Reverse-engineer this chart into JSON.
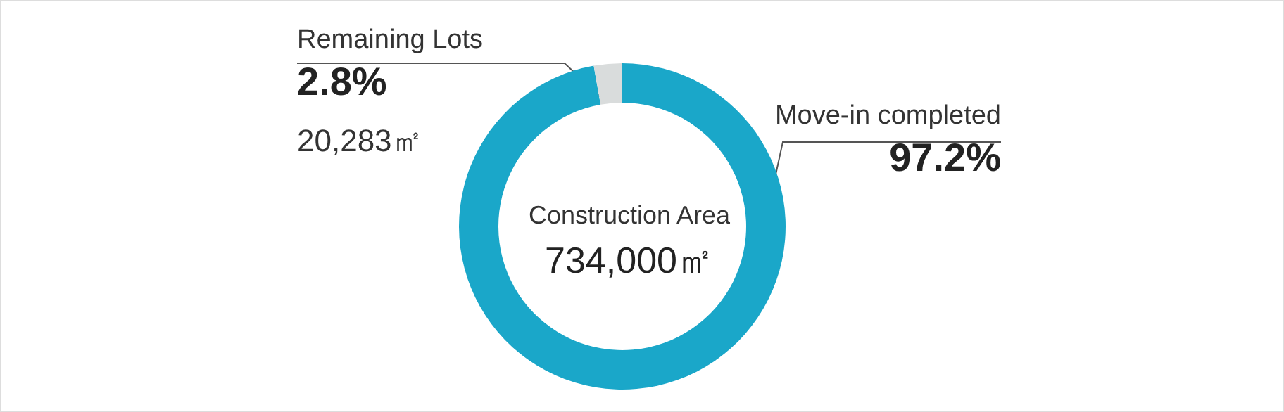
{
  "chart_data": {
    "type": "donut",
    "title": "Construction Area",
    "subtitle": "734,000㎡",
    "categories": [
      "Move-in completed",
      "Remaining Lots"
    ],
    "values": [
      97.2,
      2.8
    ],
    "colors": [
      "#1aa7c9",
      "#d9dcdc"
    ],
    "value_labels": [
      "97.2%",
      "2.8%"
    ],
    "annotations": [
      "20,283㎡"
    ],
    "legend": false
  }
}
